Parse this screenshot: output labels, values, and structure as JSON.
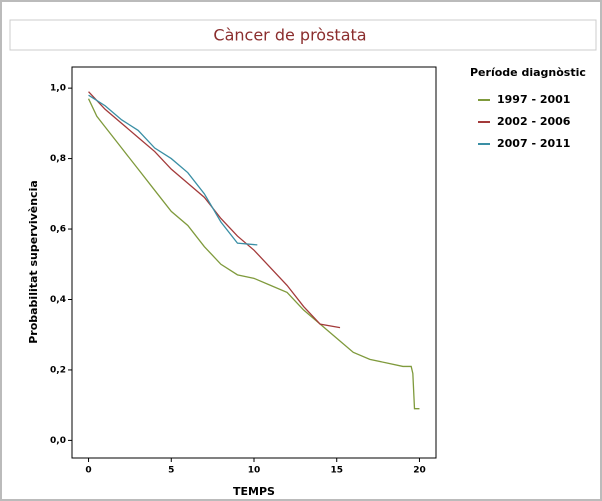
{
  "chart_data": {
    "type": "line",
    "title": "Càncer de pròstata",
    "xlabel": "TEMPS",
    "ylabel": "Probabilitat supervivència",
    "legend_title": "Període diagnòstic",
    "legend": "right",
    "xlim": [
      -1,
      21
    ],
    "ylim": [
      -0.05,
      1.06
    ],
    "xticks": [
      0,
      5,
      10,
      15,
      20
    ],
    "yticks": [
      {
        "value": 0,
        "label": "0,0"
      },
      {
        "value": 0.2,
        "label": "0,2"
      },
      {
        "value": 0.4,
        "label": "0,4"
      },
      {
        "value": 0.6,
        "label": "0,6"
      },
      {
        "value": 0.8,
        "label": "0,8"
      },
      {
        "value": 1,
        "label": "1,0"
      }
    ],
    "series": [
      {
        "name": "1997 - 2001",
        "color": "#7f9a3c",
        "x": [
          0,
          0.5,
          1,
          2,
          3,
          4,
          5,
          6,
          7,
          8,
          9,
          10,
          11,
          12,
          13,
          14,
          15,
          16,
          17,
          18,
          19,
          19.5,
          19.6,
          19.7,
          20
        ],
        "values": [
          0.97,
          0.92,
          0.89,
          0.83,
          0.77,
          0.71,
          0.65,
          0.61,
          0.55,
          0.5,
          0.47,
          0.46,
          0.44,
          0.42,
          0.37,
          0.33,
          0.29,
          0.25,
          0.23,
          0.22,
          0.21,
          0.21,
          0.19,
          0.09,
          0.09
        ]
      },
      {
        "name": "2002 - 2006",
        "color": "#a33a3a",
        "x": [
          0,
          1,
          2,
          3,
          4,
          5,
          6,
          7,
          8,
          9,
          10,
          11,
          12,
          13,
          14,
          15.2
        ],
        "values": [
          0.99,
          0.94,
          0.9,
          0.86,
          0.82,
          0.77,
          0.73,
          0.69,
          0.63,
          0.58,
          0.54,
          0.49,
          0.44,
          0.38,
          0.33,
          0.32
        ]
      },
      {
        "name": "2007 - 2011",
        "color": "#3a8fa5",
        "x": [
          0,
          1,
          2,
          3,
          4,
          5,
          6,
          7,
          8,
          9,
          10.2
        ],
        "values": [
          0.98,
          0.95,
          0.91,
          0.88,
          0.83,
          0.8,
          0.76,
          0.7,
          0.62,
          0.56,
          0.555
        ]
      }
    ]
  }
}
